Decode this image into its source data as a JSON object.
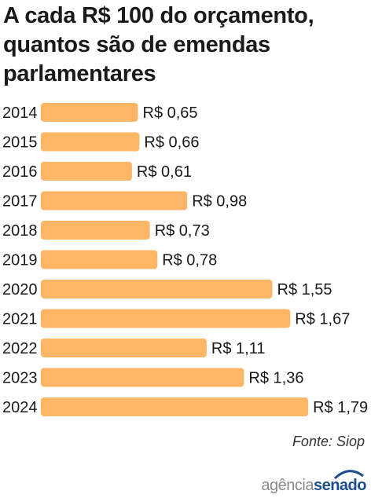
{
  "title": "A cada R$ 100 do orçamento, quantos são de emendas parlamentares",
  "source": "Fonte: Siop",
  "logo": {
    "part1": "agência",
    "part2": "senado"
  },
  "colors": {
    "bar": "#fdb566",
    "text": "#1a1a1a",
    "logo_blue": "#1d4f8c"
  },
  "chart_data": {
    "type": "bar",
    "orientation": "horizontal",
    "categories": [
      "2014",
      "2015",
      "2016",
      "2017",
      "2018",
      "2019",
      "2020",
      "2021",
      "2022",
      "2023",
      "2024"
    ],
    "values": [
      0.65,
      0.66,
      0.61,
      0.98,
      0.73,
      0.78,
      1.55,
      1.67,
      1.11,
      1.36,
      1.79
    ],
    "value_labels": [
      "R$ 0,65",
      "R$ 0,66",
      "R$ 0,61",
      "R$ 0,98",
      "R$ 0,73",
      "R$ 0,78",
      "R$ 1,55",
      "R$ 1,67",
      "R$ 1,11",
      "R$ 1,36",
      "R$ 1,79"
    ],
    "title": "A cada R$ 100 do orçamento, quantos são de emendas parlamentares",
    "xlabel": "",
    "ylabel": "",
    "grid": false,
    "legend": "none"
  }
}
